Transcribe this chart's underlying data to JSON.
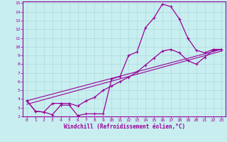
{
  "xlabel": "Windchill (Refroidissement éolien,°C)",
  "bg_color": "#c8eef0",
  "grid_color": "#b0dede",
  "line_color": "#990099",
  "xlim": [
    -0.5,
    23.5
  ],
  "ylim": [
    2,
    15.2
  ],
  "xticks": [
    0,
    1,
    2,
    3,
    4,
    5,
    6,
    7,
    8,
    9,
    10,
    11,
    12,
    13,
    14,
    15,
    16,
    17,
    18,
    19,
    20,
    21,
    22,
    23
  ],
  "yticks": [
    2,
    3,
    4,
    5,
    6,
    7,
    8,
    9,
    10,
    11,
    12,
    13,
    14,
    15
  ],
  "curve_main_x": [
    0,
    1,
    2,
    3,
    4,
    5,
    6,
    7,
    8,
    9,
    10,
    11,
    12,
    13,
    14,
    15,
    16,
    17,
    18,
    19,
    20,
    21,
    22,
    23
  ],
  "curve_main_y": [
    3.8,
    2.6,
    2.5,
    2.2,
    3.3,
    3.3,
    2.1,
    2.3,
    2.3,
    2.3,
    6.3,
    6.6,
    9.0,
    9.4,
    12.2,
    13.3,
    14.9,
    14.6,
    13.2,
    11.0,
    9.6,
    9.3,
    9.7,
    9.7
  ],
  "curve_low_x": [
    0,
    1,
    2,
    3,
    4,
    5,
    6,
    7,
    8,
    9,
    10,
    11,
    12,
    13,
    14,
    15,
    16,
    17,
    18,
    19,
    20,
    21,
    22,
    23
  ],
  "curve_low_y": [
    3.8,
    2.6,
    2.5,
    3.5,
    3.5,
    3.5,
    3.2,
    3.8,
    4.2,
    5.0,
    5.5,
    6.0,
    6.5,
    7.1,
    7.9,
    8.7,
    9.5,
    9.7,
    9.3,
    8.4,
    8.0,
    8.8,
    9.6,
    9.7
  ],
  "line1_x": [
    0,
    23
  ],
  "line1_y": [
    3.8,
    9.7
  ],
  "line2_x": [
    0,
    23
  ],
  "line2_y": [
    3.4,
    9.5
  ]
}
